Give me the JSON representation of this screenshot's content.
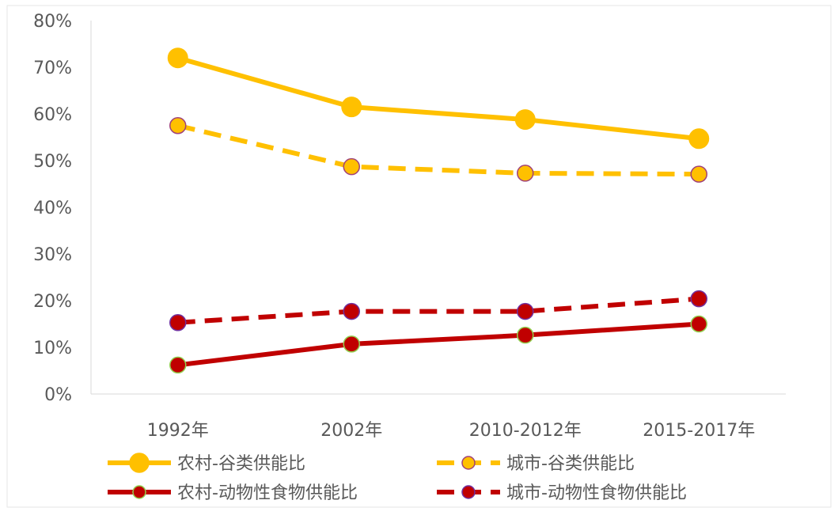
{
  "chart_data": {
    "type": "line",
    "categories": [
      "1992年",
      "2002年",
      "2010-2012年",
      "2015-2017年"
    ],
    "ylim": [
      0,
      0.8
    ],
    "yticks": [
      0,
      0.1,
      0.2,
      0.3,
      0.4,
      0.5,
      0.6,
      0.7,
      0.8
    ],
    "ytick_labels": [
      "0%",
      "10%",
      "20%",
      "30%",
      "40%",
      "50%",
      "60%",
      "70%",
      "80%"
    ],
    "grid": false,
    "legend_position": "bottom",
    "series": [
      {
        "name": "农村-谷类供能比",
        "values": [
          0.72,
          0.615,
          0.588,
          0.547
        ],
        "color": "#FFC000",
        "marker_stroke": "#FFC000",
        "dash": "solid",
        "marker": "large"
      },
      {
        "name": "城市-谷类供能比",
        "values": [
          0.575,
          0.487,
          0.473,
          0.471
        ],
        "color": "#FFC000",
        "marker_stroke": "#A0427A",
        "dash": "dashed",
        "marker": "small"
      },
      {
        "name": "农村-动物性食物供能比",
        "values": [
          0.062,
          0.107,
          0.126,
          0.15
        ],
        "color": "#C00000",
        "marker_stroke": "#92D050",
        "dash": "solid",
        "marker": "small"
      },
      {
        "name": "城市-动物性食物供能比",
        "values": [
          0.153,
          0.177,
          0.177,
          0.204
        ],
        "color": "#C00000",
        "marker_stroke": "#7030A0",
        "dash": "dashed",
        "marker": "small"
      }
    ]
  }
}
